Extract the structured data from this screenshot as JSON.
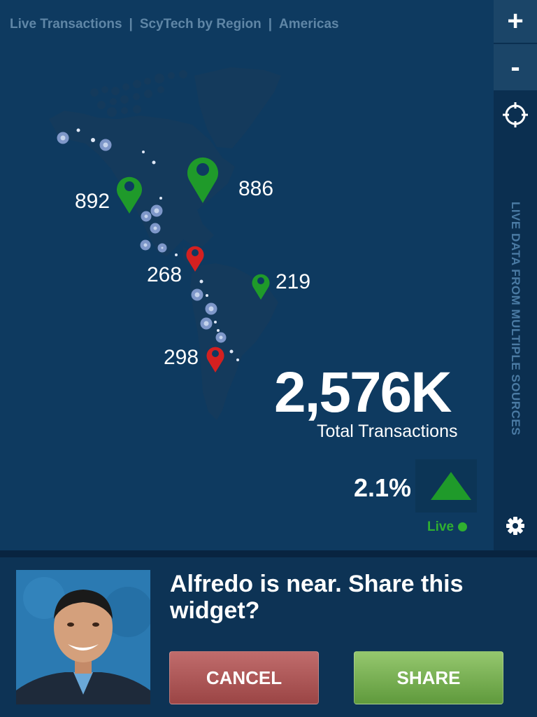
{
  "breadcrumb": {
    "items": [
      "Live Transactions",
      "ScyTech by Region",
      "Americas"
    ],
    "separator": "|"
  },
  "controls": {
    "zoom_in": "+",
    "zoom_out": "-",
    "side_label": "LIVE DATA FROM MULTIPLE SOURCES"
  },
  "map": {
    "markers": [
      {
        "value": "892",
        "status": "up"
      },
      {
        "value": "886",
        "status": "up"
      },
      {
        "value": "268",
        "status": "down"
      },
      {
        "value": "219",
        "status": "up"
      },
      {
        "value": "298",
        "status": "down"
      }
    ]
  },
  "summary": {
    "total": "2,576K",
    "total_label": "Total Transactions",
    "change": "2.1%",
    "trend": "up",
    "live_label": "Live"
  },
  "share_prompt": {
    "message": "Alfredo is near.  Share this widget?",
    "cancel_label": "CANCEL",
    "share_label": "SHARE"
  },
  "colors": {
    "up": "#1f9a2a",
    "down": "#d42020",
    "background": "#0e3a60",
    "sidebar": "#0b2f50"
  }
}
